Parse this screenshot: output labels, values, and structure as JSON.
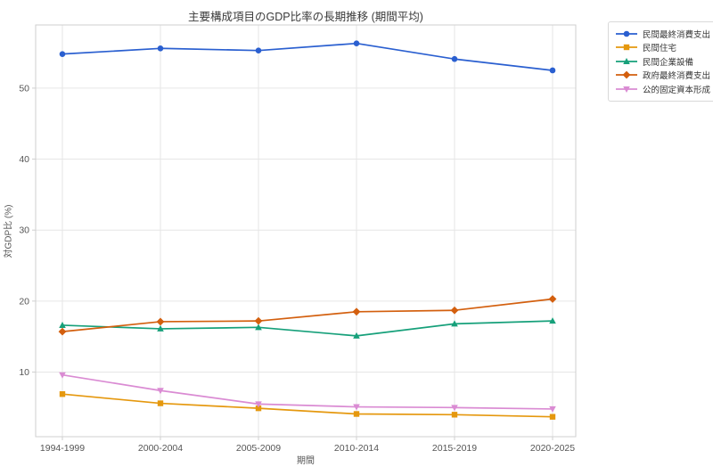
{
  "chart_data": {
    "type": "line",
    "title": "主要構成項目のGDP比率の長期推移 (期間平均)",
    "xlabel": "期間",
    "ylabel": "対GDP比 (%)",
    "categories": [
      "1994-1999",
      "2000-2004",
      "2005-2009",
      "2010-2014",
      "2015-2019",
      "2020-2025"
    ],
    "series": [
      {
        "name": "民間最終消費支出",
        "marker": "circle",
        "color": "#2a5fd0",
        "values": [
          54.8,
          55.6,
          55.3,
          56.3,
          54.1,
          52.5
        ]
      },
      {
        "name": "民間住宅",
        "marker": "square",
        "color": "#e5980e",
        "values": [
          6.9,
          5.6,
          4.9,
          4.1,
          4.0,
          3.7
        ]
      },
      {
        "name": "民間企業設備",
        "marker": "triangle-up",
        "color": "#16a07a",
        "values": [
          16.6,
          16.1,
          16.3,
          15.1,
          16.8,
          17.2
        ]
      },
      {
        "name": "政府最終消費支出",
        "marker": "diamond",
        "color": "#d35f0e",
        "values": [
          15.7,
          17.1,
          17.2,
          18.5,
          18.7,
          20.3
        ]
      },
      {
        "name": "公的固定資本形成",
        "marker": "triangle-down",
        "color": "#da8bd3",
        "values": [
          9.6,
          7.4,
          5.5,
          5.1,
          5.0,
          4.8
        ]
      }
    ],
    "yticks": [
      10,
      20,
      30,
      40,
      50
    ],
    "ylim": [
      0.9,
      58.9
    ],
    "grid": true,
    "legend_position": "outside-upper-right",
    "grid_color": "#e6e6e6",
    "spine_color": "#cfcfcf",
    "tick_label_color": "#555555"
  }
}
